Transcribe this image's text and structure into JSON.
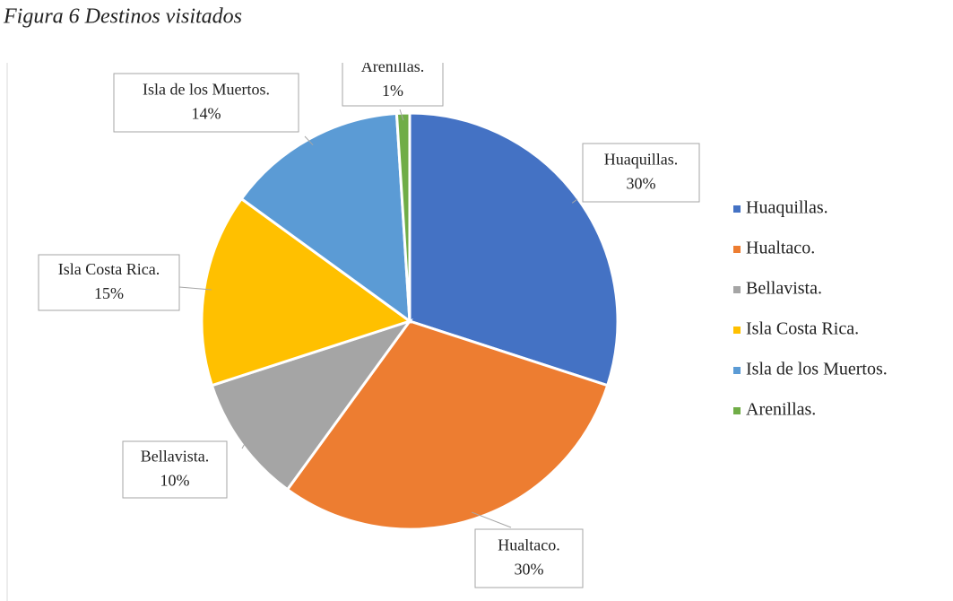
{
  "chart_data": {
    "type": "pie",
    "title": "Figura 6 Destinos visitados",
    "categories": [
      "Huaquillas.",
      "Hualtaco.",
      "Bellavista.",
      "Isla Costa Rica.",
      "Isla de los Muertos.",
      "Arenillas."
    ],
    "values": [
      30,
      30,
      10,
      15,
      14,
      1
    ],
    "value_labels": [
      "30%",
      "30%",
      "10%",
      "15%",
      "14%",
      "1%"
    ],
    "colors": [
      "#4472c4",
      "#ed7d31",
      "#a5a5a5",
      "#ffc000",
      "#5b9bd5",
      "#70ad47"
    ],
    "legend": "right"
  }
}
